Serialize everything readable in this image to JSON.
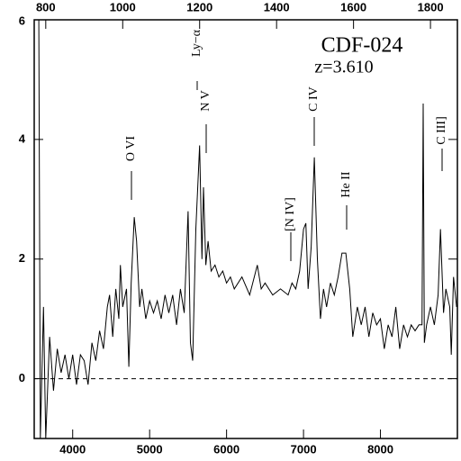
{
  "chart_data": {
    "type": "line",
    "title": "CDF-024",
    "subtitle": "z=3.610",
    "annotations": [
      "O VI",
      "N V",
      "Ly−α",
      "C IV",
      "[N IV]",
      "He II",
      "C III]"
    ],
    "xlim": [
      3500,
      9000
    ],
    "xticks": [
      4000,
      5000,
      6000,
      7000,
      8000
    ],
    "x2lim": [
      770,
      1870
    ],
    "x2ticks": [
      800,
      1000,
      1200,
      1400,
      1600,
      1800
    ],
    "ylim": [
      -1,
      6
    ],
    "yticks": [
      0,
      2,
      4,
      6
    ],
    "hline": 0,
    "color": "#000000",
    "x": [
      3540,
      3560,
      3580,
      3620,
      3650,
      3700,
      3750,
      3800,
      3850,
      3900,
      3950,
      4000,
      4050,
      4100,
      4150,
      4200,
      4250,
      4300,
      4350,
      4400,
      4450,
      4480,
      4520,
      4560,
      4600,
      4620,
      4650,
      4700,
      4730,
      4760,
      4800,
      4830,
      4870,
      4900,
      4950,
      5000,
      5050,
      5100,
      5150,
      5200,
      5250,
      5300,
      5350,
      5400,
      5450,
      5500,
      5530,
      5560,
      5600,
      5650,
      5680,
      5700,
      5730,
      5760,
      5800,
      5850,
      5900,
      5950,
      6000,
      6050,
      6100,
      6200,
      6300,
      6400,
      6450,
      6500,
      6600,
      6700,
      6800,
      6850,
      6900,
      6950,
      7000,
      7030,
      7060,
      7100,
      7140,
      7180,
      7220,
      7260,
      7300,
      7350,
      7400,
      7450,
      7500,
      7550,
      7600,
      7640,
      7700,
      7750,
      7800,
      7850,
      7900,
      7950,
      8000,
      8050,
      8100,
      8150,
      8200,
      8250,
      8300,
      8350,
      8400,
      8450,
      8500,
      8540,
      8555,
      8570,
      8600,
      8650,
      8700,
      8750,
      8780,
      8820,
      8850,
      8900,
      8920,
      8950,
      8990
    ],
    "values": [
      6,
      6,
      -1,
      1.2,
      -1,
      0.7,
      -0.2,
      0.5,
      0.1,
      0.4,
      0,
      0.4,
      -0.1,
      0.4,
      0.3,
      -0.1,
      0.6,
      0.3,
      0.8,
      0.5,
      1.2,
      1.4,
      0.7,
      1.5,
      1.0,
      1.9,
      1.2,
      1.5,
      0.2,
      1.6,
      2.7,
      2.3,
      1.2,
      1.5,
      1.0,
      1.3,
      1.1,
      1.3,
      1.0,
      1.4,
      1.1,
      1.4,
      0.9,
      1.5,
      1.1,
      2.8,
      0.6,
      0.3,
      2.5,
      3.9,
      2.0,
      3.2,
      1.9,
      2.3,
      1.8,
      1.9,
      1.7,
      1.8,
      1.6,
      1.7,
      1.5,
      1.7,
      1.4,
      1.9,
      1.5,
      1.6,
      1.4,
      1.5,
      1.4,
      1.6,
      1.5,
      1.8,
      2.5,
      2.6,
      1.5,
      2.2,
      3.7,
      2.0,
      1.0,
      1.5,
      1.2,
      1.6,
      1.4,
      1.7,
      2.1,
      2.1,
      1.5,
      0.7,
      1.2,
      0.9,
      1.2,
      0.7,
      1.1,
      0.9,
      1.0,
      0.5,
      0.9,
      0.7,
      1.2,
      0.5,
      0.9,
      0.7,
      0.9,
      0.8,
      0.9,
      0.9,
      4.6,
      0.6,
      0.9,
      1.2,
      0.9,
      1.4,
      2.5,
      1.1,
      1.5,
      1.2,
      0.4,
      1.7,
      1.2
    ]
  }
}
